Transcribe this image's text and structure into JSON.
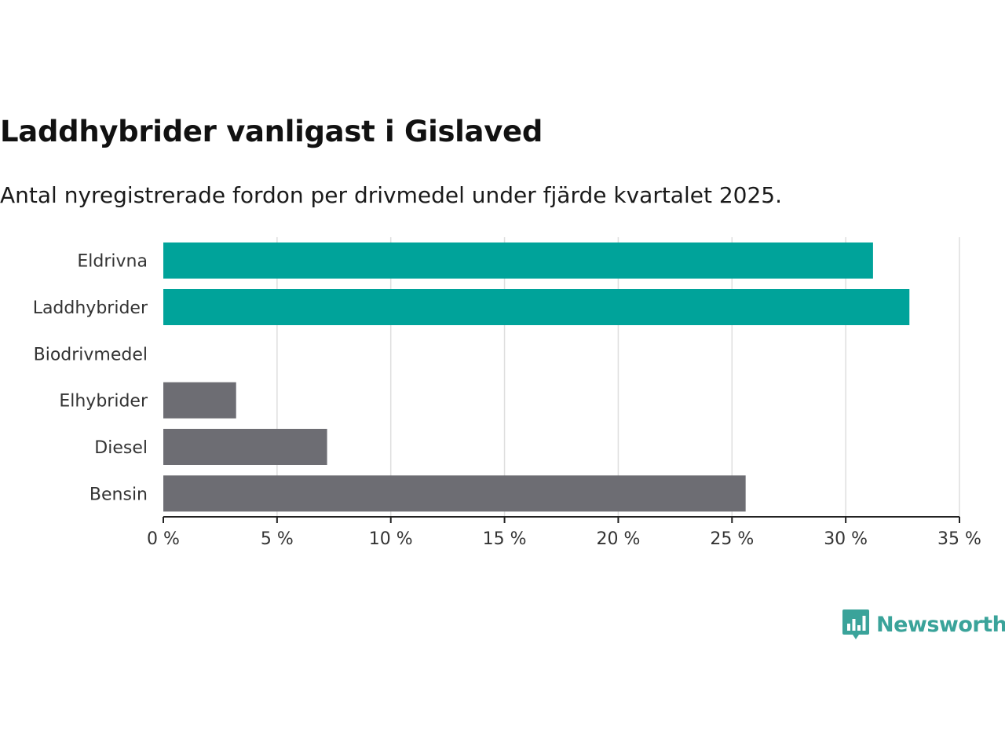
{
  "header": {
    "title": "Laddhybrider vanligast i Gislaved",
    "subtitle": "Antal nyregistrerade fordon per drivmedel under fjärde kvartalet 2025."
  },
  "brand": {
    "name": "Newsworthy",
    "logo_icon": "bar-chart-speech-bubble-icon",
    "color": "#3aa39a"
  },
  "chart_data": {
    "type": "bar",
    "orientation": "horizontal",
    "title": "Laddhybrider vanligast i Gislaved",
    "subtitle": "Antal nyregistrerade fordon per drivmedel under fjärde kvartalet 2025.",
    "xlabel": "",
    "ylabel": "",
    "categories": [
      "Eldrivna",
      "Laddhybrider",
      "Biodrivmedel",
      "Elhybrider",
      "Diesel",
      "Bensin"
    ],
    "values": [
      31.2,
      32.8,
      0,
      3.2,
      7.2,
      25.6
    ],
    "colors": [
      "#00a39a",
      "#00a39a",
      "#00a39a",
      "#6d6d73",
      "#6d6d73",
      "#6d6d73"
    ],
    "xlim": [
      0,
      35
    ],
    "ticks": [
      0,
      5,
      10,
      15,
      20,
      25,
      30,
      35
    ],
    "tick_labels": [
      "0 %",
      "5 %",
      "10 %",
      "15 %",
      "20 %",
      "25 %",
      "30 %",
      "35 %"
    ],
    "grid": true
  }
}
